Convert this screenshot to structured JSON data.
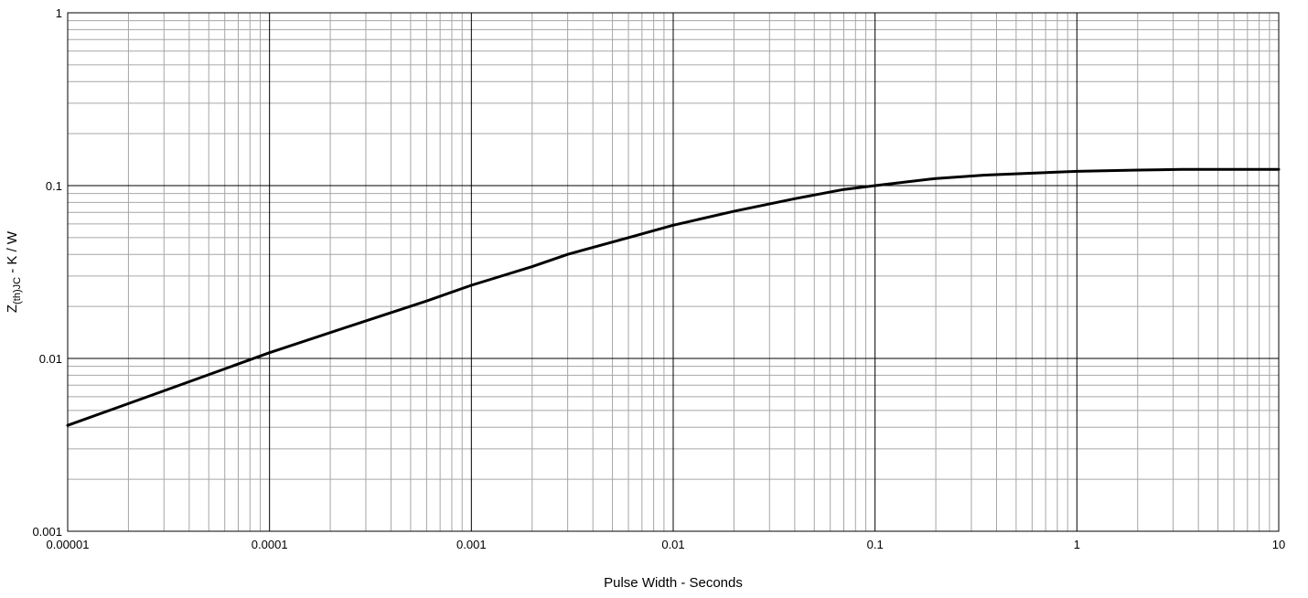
{
  "chart_data": {
    "type": "line",
    "x_scale": "log",
    "y_scale": "log",
    "xlim": [
      1e-05,
      10
    ],
    "ylim": [
      0.001,
      1
    ],
    "grid": true,
    "xlabel": "Pulse Width - Seconds",
    "ylabel": {
      "prefix": "Z",
      "subscript": "(th)JC",
      "suffix": " - K / W"
    },
    "x_ticks": [
      {
        "value": 1e-05,
        "label": "0.00001"
      },
      {
        "value": 0.0001,
        "label": "0.0001"
      },
      {
        "value": 0.001,
        "label": "0.001"
      },
      {
        "value": 0.01,
        "label": "0.01"
      },
      {
        "value": 0.1,
        "label": "0.1"
      },
      {
        "value": 1,
        "label": "1"
      },
      {
        "value": 10,
        "label": "10"
      }
    ],
    "y_ticks": [
      {
        "value": 0.001,
        "label": "0.001"
      },
      {
        "value": 0.01,
        "label": "0.01"
      },
      {
        "value": 0.1,
        "label": "0.1"
      },
      {
        "value": 1,
        "label": "1"
      }
    ],
    "series": [
      {
        "color": "#000000",
        "x": [
          1e-05,
          3e-05,
          0.0001,
          0.0003,
          0.0006,
          0.001,
          0.002,
          0.003,
          0.006,
          0.01,
          0.02,
          0.04,
          0.07,
          0.1,
          0.2,
          0.35,
          0.6,
          1,
          2,
          3.3,
          10
        ],
        "y": [
          0.0041,
          0.0065,
          0.0108,
          0.0165,
          0.0215,
          0.0265,
          0.034,
          0.04,
          0.05,
          0.059,
          0.071,
          0.084,
          0.095,
          0.1,
          0.11,
          0.115,
          0.118,
          0.121,
          0.123,
          0.124,
          0.124
        ]
      }
    ]
  }
}
